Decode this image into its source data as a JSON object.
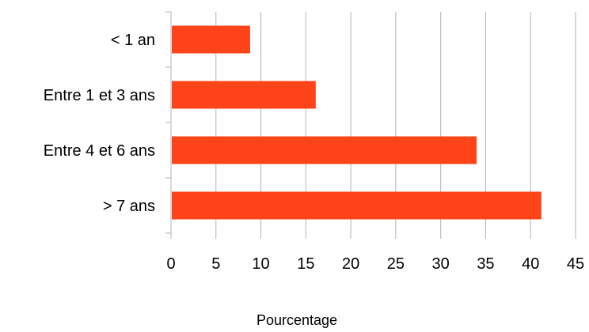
{
  "chart_data": {
    "type": "bar",
    "orientation": "horizontal",
    "categories": [
      "< 1 an",
      "Entre 1 et 3 ans",
      "Entre 4 et 6 ans",
      "> 7 ans"
    ],
    "values": [
      8.8,
      16.1,
      34.0,
      41.2
    ],
    "xlabel": "Pourcentage",
    "ylabel": "",
    "xlim": [
      0,
      45
    ],
    "xticks": [
      "0",
      "5",
      "10",
      "15",
      "20",
      "25",
      "30",
      "35",
      "40",
      "45"
    ],
    "grid": "vertical",
    "legend": "none",
    "bar_color": "#ff4419"
  }
}
